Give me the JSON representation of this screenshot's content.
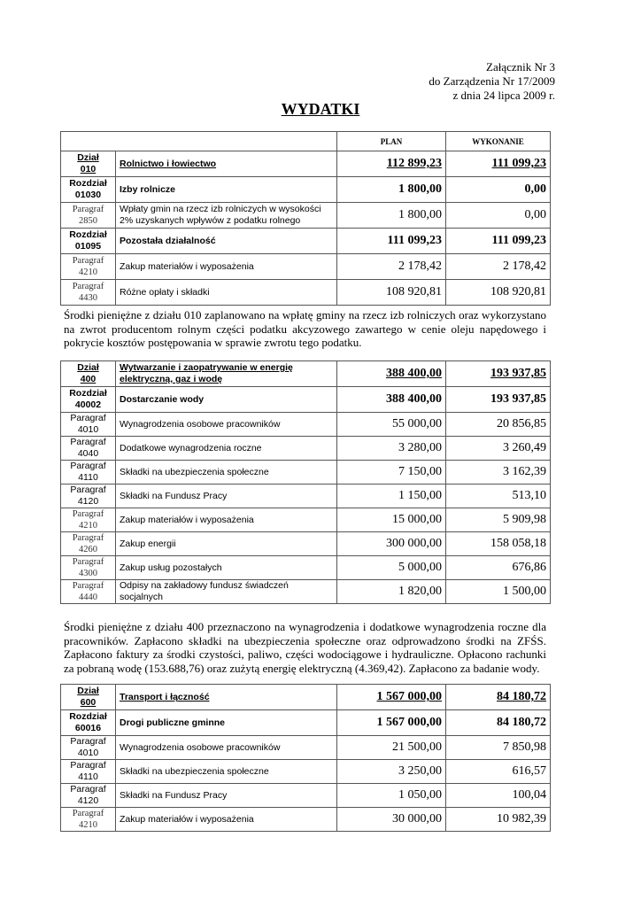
{
  "header": {
    "line1": "Załącznik Nr 3",
    "line2": "do Zarządzenia Nr 17/2009",
    "line3": "z dnia 24  lipca 2009 r."
  },
  "title": "WYDATKI",
  "columns": {
    "plan": "PLAN",
    "wykonanie": "WYKONANIE"
  },
  "sections": [
    {
      "rows": [
        {
          "type": "dzial",
          "code_label": "Dział",
          "code": "010",
          "name": "Rolnictwo i łowiectwo",
          "plan": "112 899,23",
          "wykonanie": "111 099,23"
        },
        {
          "type": "rozdzial",
          "code_label": "Rozdział",
          "code": "01030",
          "name": "Izby rolnicze",
          "plan": "1 800,00",
          "wykonanie": "0,00"
        },
        {
          "type": "paragraf",
          "code_label": "Paragraf",
          "code": "2850",
          "name": "Wpłaty gmin na rzecz izb rolniczych w wysokości 2% uzyskanych wpływów z podatku rolnego",
          "plan": "1 800,00",
          "wykonanie": "0,00"
        },
        {
          "type": "rozdzial",
          "code_label": "Rozdział",
          "code": "01095",
          "name": "Pozostała działalność",
          "plan": "111 099,23",
          "wykonanie": "111 099,23"
        },
        {
          "type": "paragraf",
          "code_label": "Paragraf",
          "code": "4210",
          "name": "Zakup materiałów i wyposażenia",
          "plan": "2 178,42",
          "wykonanie": "2 178,42"
        },
        {
          "type": "paragraf",
          "code_label": "Paragraf",
          "code": "4430",
          "name": "Różne opłaty i składki",
          "plan": "108 920,81",
          "wykonanie": "108 920,81"
        }
      ],
      "note": "Środki pieniężne z działu 010 zaplanowano na wpłatę gminy na rzecz izb rolniczych oraz wykorzystano na zwrot producentom rolnym części podatku akcyzowego zawartego w cenie oleju napędowego i pokrycie kosztów postępowania w sprawie zwrotu tego podatku."
    },
    {
      "rows": [
        {
          "type": "dzial",
          "code_label": "Dział",
          "code": "400",
          "name": "Wytwarzanie i zaopatrywanie w energię elektryczną, gaz i wodę",
          "plan": "388 400,00",
          "wykonanie": "193 937,85"
        },
        {
          "type": "rozdzial",
          "code_label": "Rozdział",
          "code": "40002",
          "name": "Dostarczanie wody",
          "plan": "388 400,00",
          "wykonanie": "193 937,85"
        },
        {
          "type": "paragraf",
          "code_label": "Paragraf",
          "code": "4010",
          "name": "Wynagrodzenia osobowe pracowników",
          "plan": "55 000,00",
          "wykonanie": "20 856,85"
        },
        {
          "type": "paragraf",
          "code_label": "Paragraf",
          "code": "4040",
          "name": "Dodatkowe wynagrodzenia roczne",
          "plan": "3 280,00",
          "wykonanie": "3 260,49"
        },
        {
          "type": "paragraf",
          "code_label": "Paragraf",
          "code": "4110",
          "name": "Składki na ubezpieczenia społeczne",
          "plan": "7 150,00",
          "wykonanie": "3 162,39"
        },
        {
          "type": "paragraf",
          "code_label": "Paragraf",
          "code": "4120",
          "name": "Składki na Fundusz Pracy",
          "plan": "1 150,00",
          "wykonanie": "513,10"
        },
        {
          "type": "paragraf",
          "code_label": "Paragraf",
          "code": "4210",
          "name": "Zakup materiałów i wyposażenia",
          "plan": "15 000,00",
          "wykonanie": "5 909,98"
        },
        {
          "type": "paragraf",
          "code_label": "Paragraf",
          "code": "4260",
          "name": "Zakup energii",
          "plan": "300 000,00",
          "wykonanie": "158 058,18"
        },
        {
          "type": "paragraf",
          "code_label": "Paragraf",
          "code": "4300",
          "name": "Zakup usług pozostałych",
          "plan": "5 000,00",
          "wykonanie": "676,86"
        },
        {
          "type": "paragraf",
          "code_label": "Paragraf",
          "code": "4440",
          "name": "Odpisy na zakładowy fundusz świadczeń socjalnych",
          "plan": "1 820,00",
          "wykonanie": "1 500,00"
        }
      ],
      "note": "Środki pieniężne z działu 400 przeznaczono na wynagrodzenia i dodatkowe wynagrodzenia roczne dla pracowników. Zapłacono składki na ubezpieczenia społeczne oraz odprowadzono środki na ZFŚS. Zapłacono faktury za środki czystości, paliwo, części wodociągowe i hydrauliczne. Opłacono rachunki za pobraną wodę (153.688,76) oraz zużytą energię elektryczną (4.369,42). Zapłacono za badanie wody."
    },
    {
      "rows": [
        {
          "type": "dzial",
          "code_label": "Dział",
          "code": "600",
          "name": "Transport i łączność",
          "plan": "1 567 000,00",
          "wykonanie": "84 180,72"
        },
        {
          "type": "rozdzial",
          "code_label": "Rozdział",
          "code": "60016",
          "name": "Drogi publiczne gminne",
          "plan": "1 567 000,00",
          "wykonanie": "84 180,72"
        },
        {
          "type": "paragraf",
          "code_label": "Paragraf",
          "code": "4010",
          "name": "Wynagrodzenia osobowe pracowników",
          "plan": "21 500,00",
          "wykonanie": "7 850,98"
        },
        {
          "type": "paragraf",
          "code_label": "Paragraf",
          "code": "4110",
          "name": "Składki na ubezpieczenia społeczne",
          "plan": "3 250,00",
          "wykonanie": "616,57"
        },
        {
          "type": "paragraf",
          "code_label": "Paragraf",
          "code": "4120",
          "name": "Składki na Fundusz Pracy",
          "plan": "1 050,00",
          "wykonanie": "100,04"
        },
        {
          "type": "paragraf",
          "code_label": "Paragraf",
          "code": "4210",
          "name": "Zakup materiałów i wyposażenia",
          "plan": "30 000,00",
          "wykonanie": "10 982,39"
        }
      ]
    }
  ]
}
